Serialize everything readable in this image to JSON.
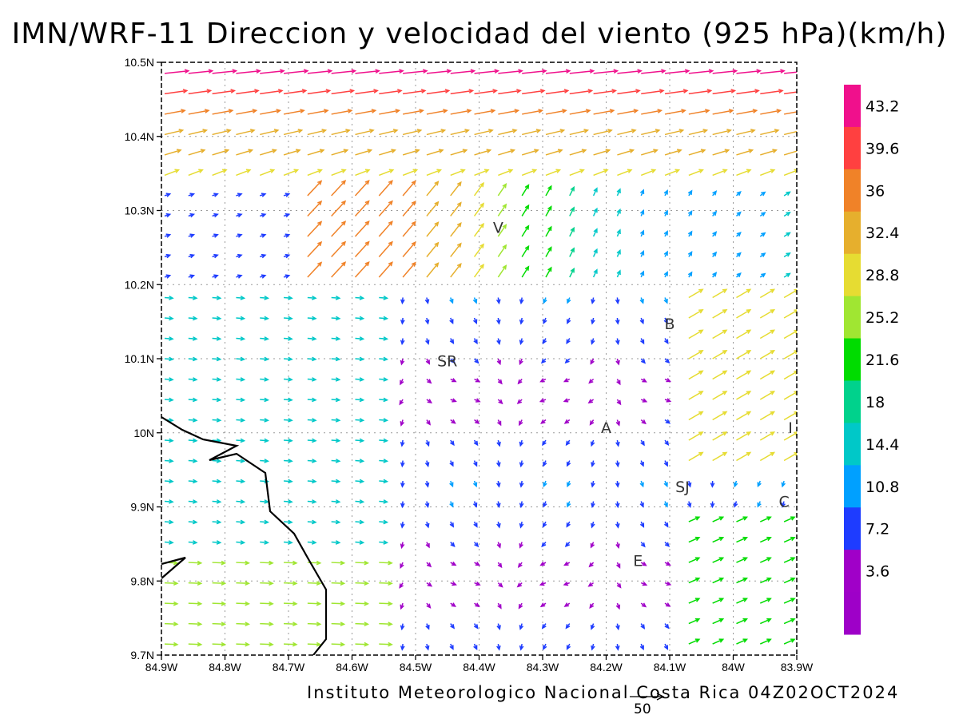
{
  "title": "IMN/WRF-11 Direccion y velocidad del viento (925 hPa)(km/h)",
  "footer": "Instituto Meteorologico Nacional Costa Rica 04Z02OCT2024",
  "reference_vector": {
    "label": "50"
  },
  "lat_ticks": [
    "10.5N",
    "10.4N",
    "10.3N",
    "10.2N",
    "10.1N",
    "10N",
    "9.9N",
    "9.8N",
    "9.7N"
  ],
  "lon_ticks": [
    "84.9W",
    "84.8W",
    "84.7W",
    "84.6W",
    "84.5W",
    "84.4W",
    "84.3W",
    "84.2W",
    "84.1W",
    "84W",
    "83.9W"
  ],
  "extent": {
    "lon_west": -84.9,
    "lon_east": -83.9,
    "lat_south": 9.7,
    "lat_north": 10.5
  },
  "places": [
    {
      "label": "V",
      "lon": -84.37,
      "lat": 10.27
    },
    {
      "label": "SR",
      "lon": -84.45,
      "lat": 10.09
    },
    {
      "label": "B",
      "lon": -84.1,
      "lat": 10.14
    },
    {
      "label": "A",
      "lon": -84.2,
      "lat": 10.0
    },
    {
      "label": "I",
      "lon": -83.91,
      "lat": 10.0
    },
    {
      "label": "SJ",
      "lon": -84.08,
      "lat": 9.92
    },
    {
      "label": "C",
      "lon": -83.92,
      "lat": 9.9
    },
    {
      "label": "E",
      "lon": -84.15,
      "lat": 9.82
    }
  ],
  "colorbar": {
    "labels": [
      "43.2",
      "39.6",
      "36",
      "32.4",
      "28.8",
      "25.2",
      "21.6",
      "18",
      "14.4",
      "10.8",
      "7.2",
      "3.6"
    ],
    "colors": [
      "#f0108c",
      "#ff4040",
      "#f08228",
      "#e6af2d",
      "#e6dc32",
      "#a0e632",
      "#00dc00",
      "#00d28c",
      "#00c8c8",
      "#00a0ff",
      "#1e3cff",
      "#a000c8",
      "#9e00c8"
    ]
  }
}
